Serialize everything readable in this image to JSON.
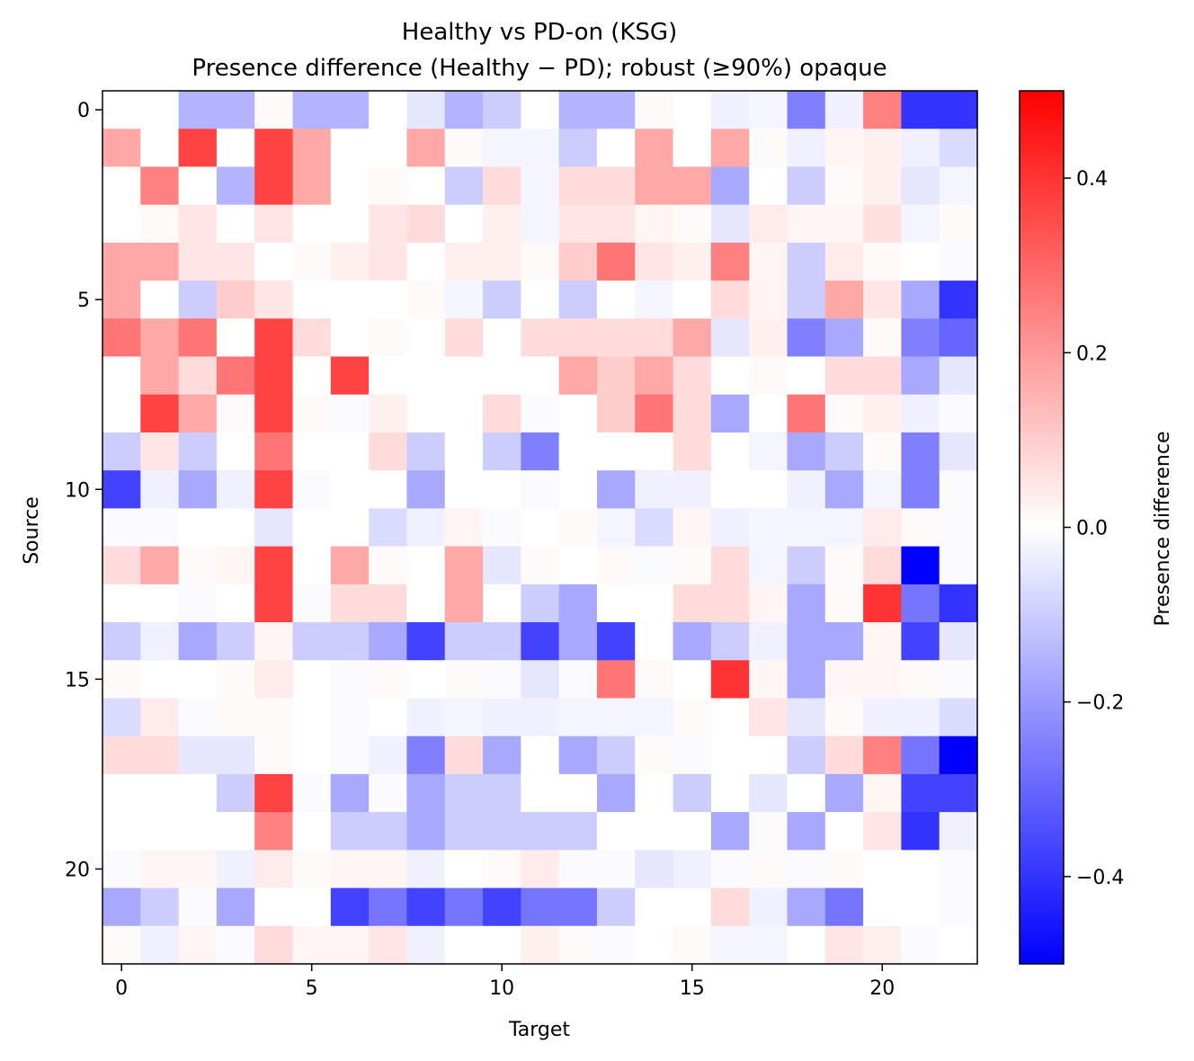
{
  "chart_data": {
    "type": "heatmap",
    "title": "Healthy vs PD-on (KSG)",
    "subtitle": "Presence difference (Healthy − PD); robust (≥90%) opaque",
    "xlabel": "Target",
    "ylabel": "Source",
    "colorbar_label": "Presence difference",
    "colormap": "bwr",
    "colorbar_range": [
      -0.5,
      0.5
    ],
    "colorbar_ticks": [
      0.4,
      0.2,
      0.0,
      -0.2,
      -0.4
    ],
    "colorbar_tick_labels": [
      "0.4",
      "0.2",
      "0.0",
      "−0.2",
      "−0.4"
    ],
    "x_ticks": [
      0,
      5,
      10,
      15,
      20
    ],
    "y_ticks": [
      0,
      5,
      10,
      15,
      20
    ],
    "x_tick_labels": [
      "0",
      "5",
      "10",
      "15",
      "20"
    ],
    "y_tick_labels": [
      "0",
      "5",
      "10",
      "15",
      "20"
    ],
    "n_rows": 23,
    "n_cols": 23,
    "grid": false,
    "matrix": [
      [
        0,
        0,
        -0.15,
        -0.15,
        0.01,
        -0.15,
        -0.15,
        0,
        -0.05,
        -0.15,
        -0.1,
        0,
        -0.15,
        -0.15,
        0.01,
        0,
        -0.03,
        -0.02,
        -0.25,
        -0.03,
        0.25,
        -0.4,
        -0.4
      ],
      [
        0.17,
        0,
        0.37,
        0,
        0.37,
        0.17,
        0,
        0,
        0.17,
        0.01,
        -0.02,
        -0.02,
        -0.1,
        0,
        0.17,
        0,
        0.17,
        0.01,
        -0.03,
        0.02,
        0.03,
        -0.03,
        -0.07
      ],
      [
        0,
        0.25,
        0,
        -0.15,
        0.37,
        0.17,
        0,
        0.01,
        0,
        -0.1,
        0.07,
        -0.02,
        0.07,
        0.07,
        0.17,
        0.17,
        -0.17,
        0,
        -0.1,
        0.01,
        0.03,
        -0.05,
        -0.02
      ],
      [
        0,
        0.01,
        0.05,
        0,
        0.05,
        0,
        0,
        0.05,
        0.07,
        0,
        0.03,
        -0.02,
        0.05,
        0.05,
        0.02,
        0.01,
        -0.05,
        0.04,
        0.02,
        0.02,
        0.06,
        -0.02,
        0.01
      ],
      [
        0.17,
        0.17,
        0.05,
        0.05,
        0,
        0.01,
        0.03,
        0.05,
        0,
        0.03,
        0.03,
        0.01,
        0.1,
        0.27,
        0.05,
        0.03,
        0.25,
        0.02,
        -0.1,
        0.04,
        0.01,
        0,
        -0.01
      ],
      [
        0.17,
        0,
        -0.1,
        0.1,
        0.05,
        0,
        0,
        0,
        0.01,
        -0.02,
        -0.1,
        0,
        -0.1,
        0,
        -0.02,
        0,
        0.07,
        0.02,
        -0.1,
        0.17,
        0.05,
        -0.17,
        -0.4
      ],
      [
        0.27,
        0.17,
        0.27,
        0,
        0.37,
        0.07,
        0,
        0.01,
        0,
        0.07,
        0,
        0.07,
        0.07,
        0.07,
        0.07,
        0.17,
        -0.05,
        0.03,
        -0.25,
        -0.17,
        0.01,
        -0.25,
        -0.3
      ],
      [
        0,
        0.17,
        0.07,
        0.27,
        0.37,
        0,
        0.37,
        0,
        0,
        0,
        0,
        0,
        0.17,
        0.1,
        0.17,
        0.07,
        0,
        0.01,
        0,
        0.07,
        0.07,
        -0.17,
        -0.05
      ],
      [
        0,
        0.37,
        0.17,
        0.01,
        0.37,
        0.01,
        -0.01,
        0.03,
        0,
        0,
        0.07,
        -0.01,
        0,
        0.1,
        0.27,
        0.07,
        -0.17,
        0,
        0.27,
        0.01,
        0.03,
        -0.03,
        -0.01
      ],
      [
        -0.1,
        0.05,
        -0.1,
        0,
        0.27,
        0,
        0,
        0.07,
        -0.1,
        0,
        -0.1,
        -0.25,
        0,
        0,
        0,
        0.07,
        0,
        -0.02,
        -0.17,
        -0.1,
        0.01,
        -0.25,
        -0.05
      ],
      [
        -0.37,
        -0.03,
        -0.17,
        -0.03,
        0.37,
        -0.01,
        0,
        0,
        -0.17,
        0,
        0,
        -0.01,
        0,
        -0.17,
        -0.03,
        -0.03,
        0,
        0,
        -0.03,
        -0.17,
        -0.02,
        -0.25,
        -0.01
      ],
      [
        -0.01,
        -0.01,
        0,
        0,
        -0.05,
        0,
        0,
        -0.07,
        -0.03,
        0.02,
        -0.01,
        0,
        0.01,
        -0.02,
        -0.07,
        0.02,
        -0.03,
        -0.02,
        -0.02,
        -0.02,
        0.04,
        0.01,
        -0.01
      ],
      [
        0.07,
        0.17,
        0.01,
        0.02,
        0.37,
        0,
        0.17,
        0.01,
        0,
        0.17,
        -0.05,
        0.01,
        0,
        0.01,
        -0.01,
        0.01,
        0.07,
        -0.02,
        -0.1,
        0.01,
        0.07,
        -0.5,
        -0.01
      ],
      [
        0,
        0,
        -0.01,
        0,
        0.37,
        -0.01,
        0.07,
        0.07,
        0,
        0.17,
        0,
        -0.1,
        -0.17,
        0,
        0,
        0.07,
        0.07,
        0.02,
        -0.17,
        0.01,
        0.4,
        -0.27,
        -0.4
      ],
      [
        -0.1,
        -0.03,
        -0.17,
        -0.1,
        0.02,
        -0.1,
        -0.1,
        -0.17,
        -0.37,
        -0.1,
        -0.1,
        -0.37,
        -0.17,
        -0.37,
        0,
        -0.17,
        -0.1,
        -0.03,
        -0.17,
        -0.17,
        0.02,
        -0.37,
        -0.05
      ],
      [
        0.01,
        0,
        0,
        0.01,
        0.04,
        0,
        -0.01,
        0.01,
        0,
        0.01,
        -0.01,
        -0.05,
        -0.01,
        0.27,
        0.01,
        0,
        0.4,
        0.02,
        -0.17,
        0.02,
        0.02,
        0.01,
        -0.01
      ],
      [
        -0.07,
        0.04,
        -0.01,
        0.01,
        0.01,
        0,
        -0.01,
        0,
        -0.03,
        -0.02,
        -0.03,
        -0.03,
        -0.02,
        -0.02,
        -0.02,
        0.01,
        0,
        0.05,
        -0.05,
        0.01,
        -0.03,
        -0.03,
        -0.07
      ],
      [
        0.07,
        0.07,
        -0.05,
        -0.05,
        0.01,
        0,
        -0.01,
        -0.03,
        -0.25,
        0.07,
        -0.17,
        0,
        -0.17,
        -0.1,
        0.01,
        -0.01,
        0,
        0,
        -0.1,
        0.07,
        0.25,
        -0.27,
        -0.5
      ],
      [
        0,
        0,
        0,
        -0.1,
        0.37,
        -0.01,
        -0.17,
        -0.01,
        -0.17,
        -0.1,
        -0.1,
        0,
        0,
        -0.17,
        0,
        -0.1,
        0,
        -0.05,
        0,
        -0.17,
        0.02,
        -0.37,
        -0.37
      ],
      [
        0,
        0,
        0,
        0,
        0.25,
        0,
        -0.1,
        -0.1,
        -0.17,
        -0.1,
        -0.1,
        -0.1,
        -0.1,
        0,
        0,
        0,
        -0.17,
        -0.01,
        -0.17,
        0,
        0.05,
        -0.4,
        -0.03
      ],
      [
        -0.01,
        0.02,
        0.02,
        -0.03,
        0.04,
        0.01,
        0.02,
        0.02,
        -0.03,
        0,
        0.01,
        0.04,
        -0.01,
        -0.01,
        -0.05,
        -0.03,
        -0.01,
        0.01,
        -0.01,
        0.01,
        0,
        0,
        -0.01
      ],
      [
        -0.17,
        -0.1,
        -0.01,
        -0.17,
        0,
        0,
        -0.37,
        -0.27,
        -0.37,
        -0.27,
        -0.37,
        -0.27,
        -0.27,
        -0.1,
        0,
        0,
        0.07,
        -0.03,
        -0.17,
        -0.27,
        0,
        0,
        -0.01
      ],
      [
        0.01,
        -0.03,
        0.02,
        -0.01,
        0.07,
        0.02,
        0.02,
        0.05,
        -0.03,
        0,
        0,
        0.03,
        0.01,
        -0.01,
        0,
        0.01,
        -0.02,
        -0.02,
        0,
        0.05,
        0.03,
        -0.01,
        0
      ]
    ]
  }
}
